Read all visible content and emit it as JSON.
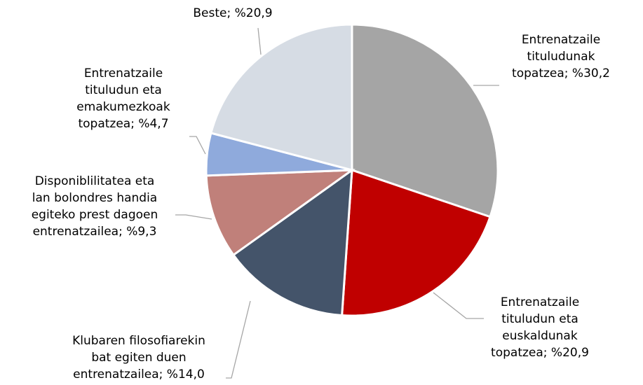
{
  "chart_data": {
    "type": "pie",
    "values": [
      30.2,
      20.9,
      14.0,
      9.3,
      4.7,
      20.9
    ],
    "value_labels": [
      "Entrenatzaile tituludunak topatzea; %30,2",
      "Entrenatzaile tituludun eta euskaldunak topatzea; %20,9",
      "Klubaren filosofiarekin bat egiten duen entrenatzailea; %14,0",
      "Disponiblilitatea eta lan bolondres handia egiteko prest dagoen entrenatzailea; %9,3",
      "Entrenatzaile tituludun eta emakumezkoak topatzea; %4,7",
      "Beste; %20,9"
    ],
    "colors": [
      "#a5a5a5",
      "#c00000",
      "#44546a",
      "#c0807a",
      "#8faadc",
      "#d6dce4"
    ]
  }
}
